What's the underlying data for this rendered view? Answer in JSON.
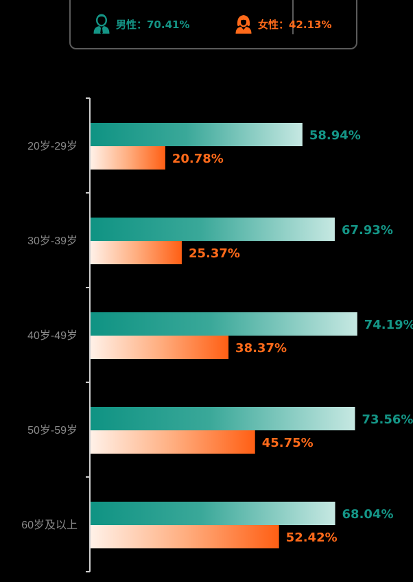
{
  "legend": {
    "male": {
      "label": "男性：70.41%",
      "color": "#149586",
      "icon": "male-user-icon"
    },
    "female": {
      "label": "女性：42.13%",
      "color": "#ff6a1a",
      "icon": "female-user-icon"
    }
  },
  "chart_data": {
    "type": "bar",
    "orientation": "horizontal",
    "categories": [
      "20岁-29岁",
      "30岁-39岁",
      "40岁-49岁",
      "50岁-59岁",
      "60岁及以上"
    ],
    "series": [
      {
        "name": "男性",
        "values": [
          58.94,
          67.93,
          74.19,
          73.56,
          68.04
        ],
        "labels": [
          "58.94%",
          "67.93%",
          "74.19%",
          "73.56%",
          "68.04%"
        ],
        "color": "#149586"
      },
      {
        "name": "女性",
        "values": [
          20.78,
          25.37,
          38.37,
          45.75,
          52.42
        ],
        "labels": [
          "20.78%",
          "25.37%",
          "38.37%",
          "45.75%",
          "52.42%"
        ],
        "color": "#ff6a1a"
      }
    ],
    "xlim": [
      0,
      100
    ],
    "grid": false,
    "legend_position": "top-center"
  }
}
